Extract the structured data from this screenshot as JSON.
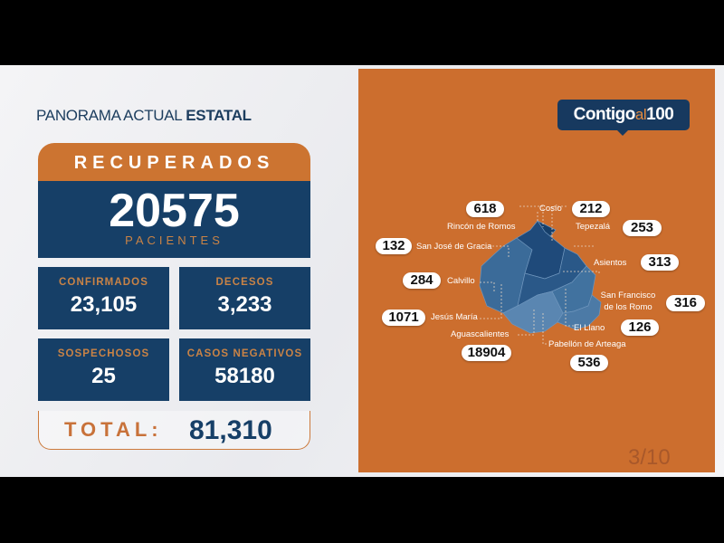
{
  "header": {
    "title_regular": "PANORAMA ACTUAL ",
    "title_bold": "ESTATAL"
  },
  "recuperados": {
    "label": "RECUPERADOS",
    "value": "20575",
    "unit": "PACIENTES"
  },
  "cards": [
    {
      "label": "CONFIRMADOS",
      "value": "23,105"
    },
    {
      "label": "DECESOS",
      "value": "3,233"
    },
    {
      "label": "SOSPECHOSOS",
      "value": "25"
    },
    {
      "label": "CASOS NEGATIVOS",
      "value": "58180"
    }
  ],
  "total": {
    "label": "TOTAL:",
    "value": "81,310"
  },
  "logo": {
    "text1": "Contigo",
    "text2": "al",
    "text3": "100"
  },
  "page_indicator": "3/10",
  "municipalities": [
    {
      "name": "Rincón de Romos",
      "value": "618"
    },
    {
      "name": "Cosío",
      "value": "212"
    },
    {
      "name": "Tepezalá",
      "value": "253"
    },
    {
      "name": "San José de Gracia",
      "value": "132"
    },
    {
      "name": "Asientos",
      "value": "313"
    },
    {
      "name": "Calvillo",
      "value": "284"
    },
    {
      "name": "San Francisco de los Romo",
      "value": "316"
    },
    {
      "name": "Jesús María",
      "value": "1071"
    },
    {
      "name": "El Llano",
      "value": "126"
    },
    {
      "name": "Aguascalientes",
      "value": "18904"
    },
    {
      "name": "Pabellón de Arteaga",
      "value": "536"
    }
  ],
  "colors": {
    "orange": "#cc6e2e",
    "navy": "#163f67"
  }
}
